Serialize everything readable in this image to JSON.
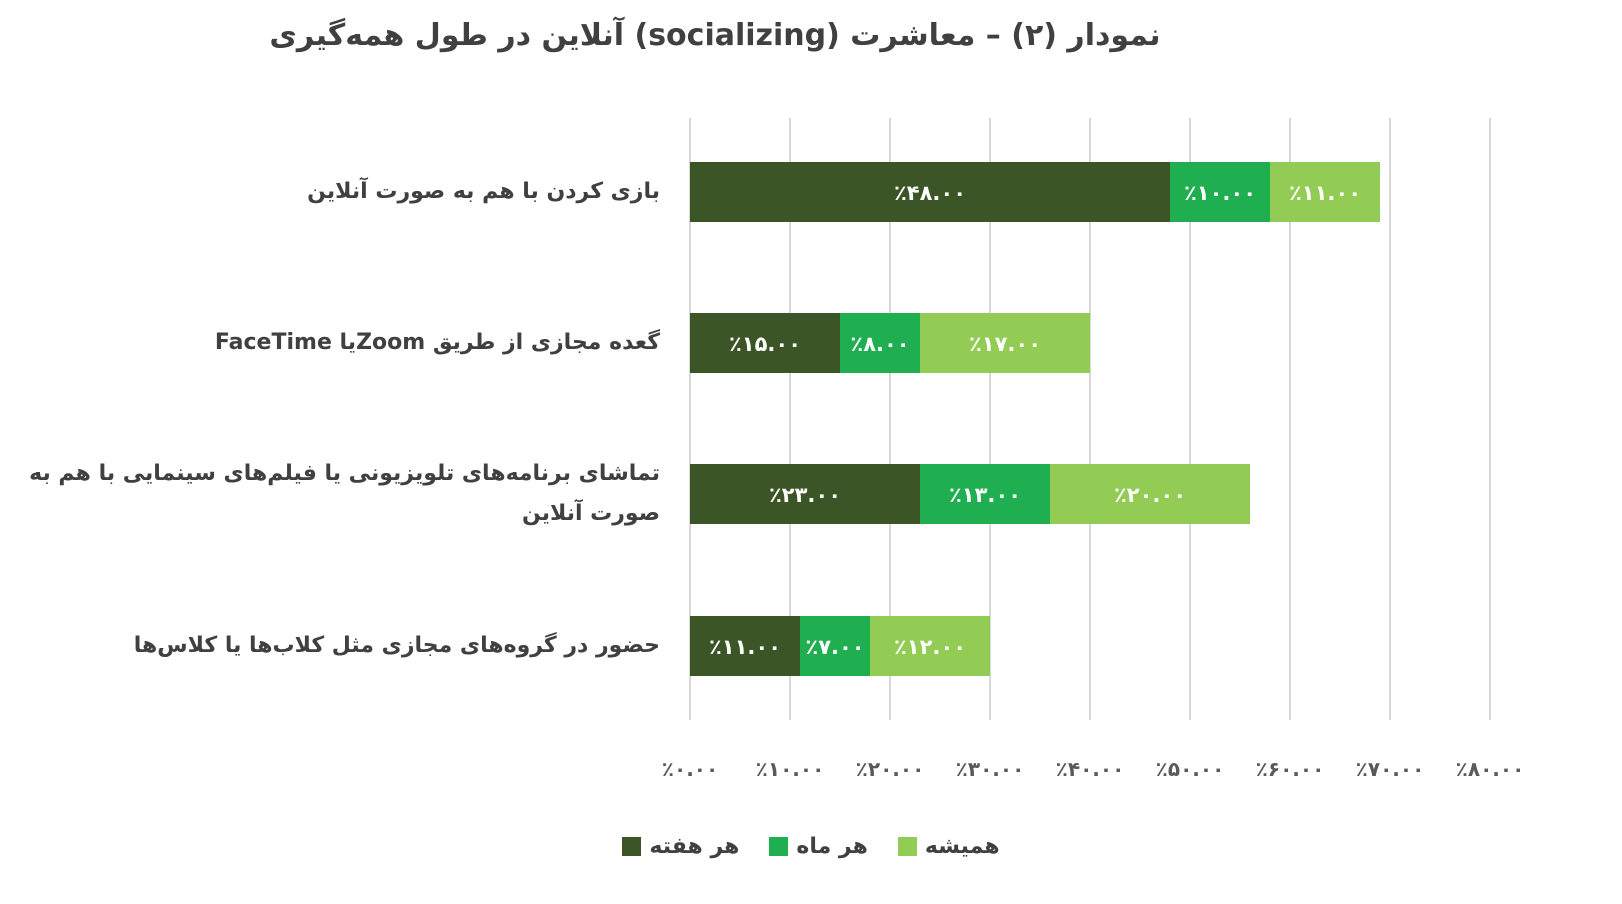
{
  "chart_data": {
    "type": "bar",
    "orientation": "horizontal",
    "stacked": true,
    "title": "نمودار (۲) – معاشرت (socializing) آنلاین در طول همه‌گیری",
    "categories": [
      "بازی کردن با هم به صورت آنلاین",
      "گعده مجازی از طریق   Zoomیا FaceTime",
      "تماشای برنامه‌های تلویزیونی یا فیلم‌های سینمایی با هم به صورت آنلاین",
      "حضور در گروه‌های مجازی مثل کلاب‌ها یا کلاس‌ها"
    ],
    "series": [
      {
        "name": "هر هفته",
        "color": "#3b5526",
        "values": [
          48,
          15,
          23,
          11
        ],
        "labels": [
          "٪۴۸.۰۰",
          "٪۱۵.۰۰",
          "٪۲۳.۰۰",
          "٪۱۱.۰۰"
        ]
      },
      {
        "name": "هر ماه",
        "color": "#1fae50",
        "values": [
          10,
          8,
          13,
          7
        ],
        "labels": [
          "٪۱۰.۰۰",
          "٪۸.۰۰",
          "٪۱۳.۰۰",
          "٪۷.۰۰"
        ]
      },
      {
        "name": "همیشه",
        "color": "#92cc55",
        "values": [
          11,
          17,
          20,
          12
        ],
        "labels": [
          "٪۱۱.۰۰",
          "٪۱۷.۰۰",
          "٪۲۰.۰۰",
          "٪۱۲.۰۰"
        ]
      }
    ],
    "xlim": [
      0,
      80
    ],
    "xticks": [
      0,
      10,
      20,
      30,
      40,
      50,
      60,
      70,
      80
    ],
    "xtick_labels": [
      "٪۰.۰۰",
      "٪۱۰.۰۰",
      "٪۲۰.۰۰",
      "٪۳۰.۰۰",
      "٪۴۰.۰۰",
      "٪۵۰.۰۰",
      "٪۶۰.۰۰",
      "٪۷۰.۰۰",
      "٪۸۰.۰۰"
    ],
    "grid": true,
    "legend_position": "bottom"
  }
}
